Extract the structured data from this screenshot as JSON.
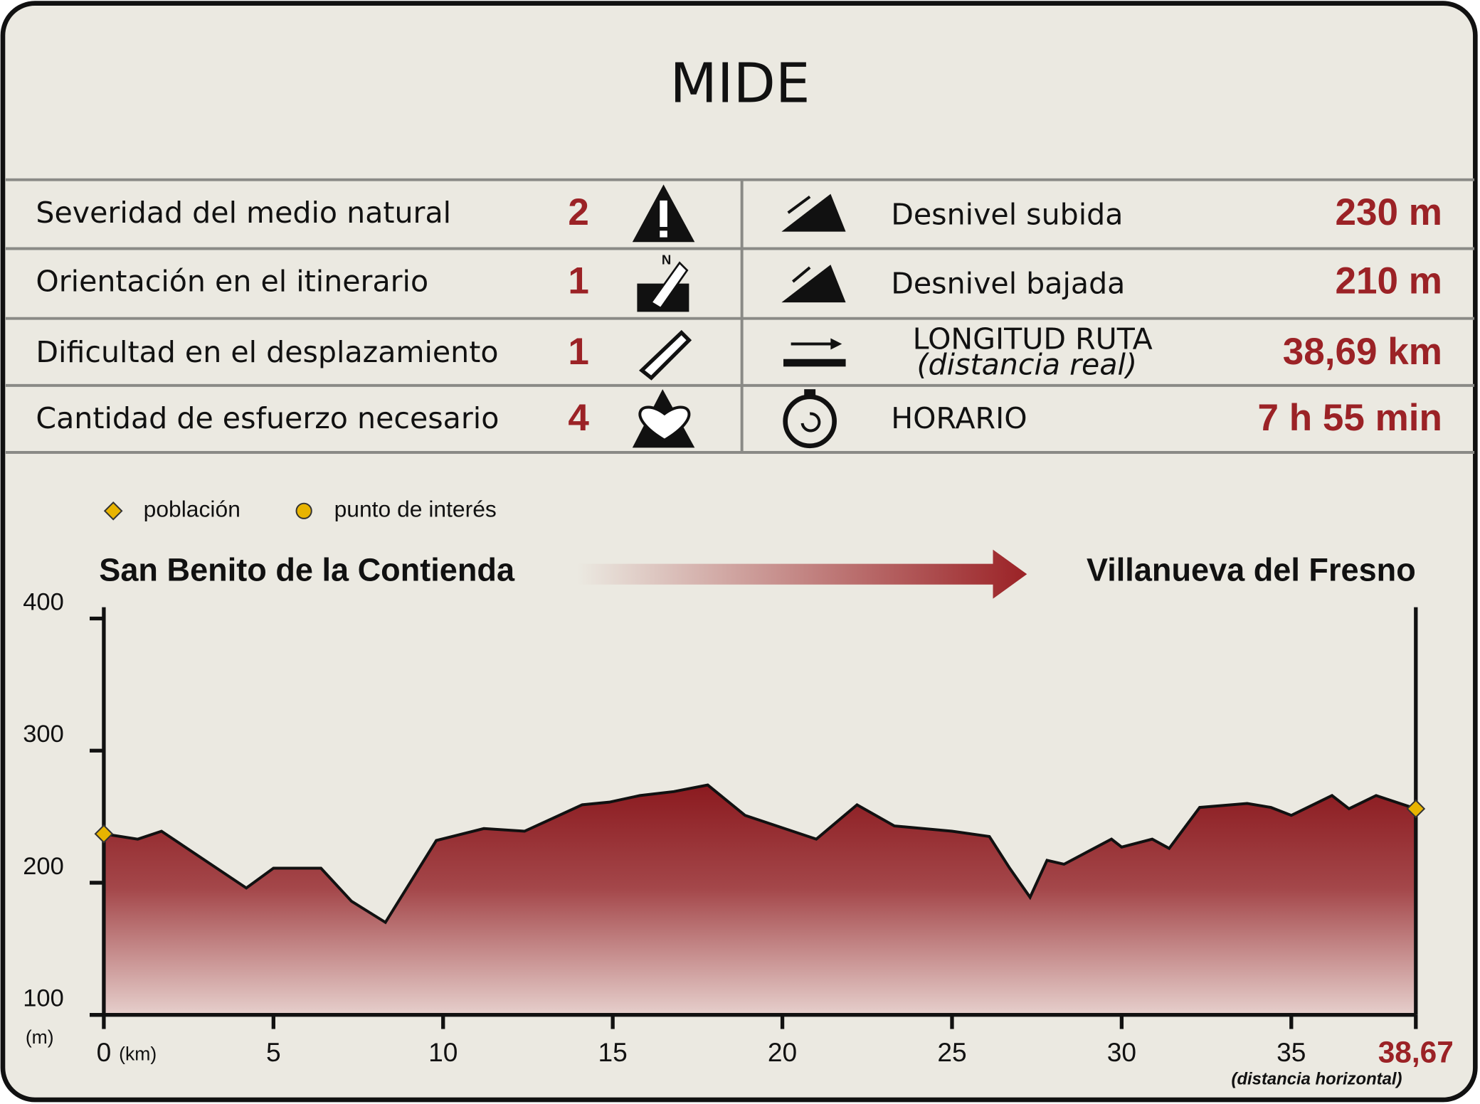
{
  "header": {
    "title": "MIDE"
  },
  "table": {
    "rows": [
      {
        "label": "Severidad del medio natural",
        "value": 2,
        "right_label": "Desnivel subida",
        "right_value": "230 m"
      },
      {
        "label": "Orientación en el itinerario",
        "value": 1,
        "right_label": "Desnivel bajada",
        "right_value": "210 m"
      },
      {
        "label": "Dificultad en el desplazamiento",
        "value": 1,
        "right_label": "LONGITUD RUTA",
        "right_note": "(distancia real)",
        "right_value": "38,69 km"
      },
      {
        "label": "Cantidad de esfuerzo necesario",
        "value": 4,
        "right_label": "HORARIO",
        "right_value": "7 h 55 min"
      }
    ]
  },
  "chart_data": {
    "type": "area",
    "start": "San Benito de la Contienda",
    "end": "Villanueva del Fresno",
    "legend": [
      {
        "name": "población",
        "shape": "diamond",
        "color": "#e8b400"
      },
      {
        "name": "punto de interés",
        "shape": "circle",
        "color": "#e8b400"
      }
    ],
    "y_unit": "(m)",
    "x_unit": "(km)",
    "x_note": "(distancia horizontal)",
    "color": "#8b1a1f",
    "x": [
      0,
      1.0,
      1.7,
      4.2,
      5.0,
      6.4,
      7.3,
      8.3,
      9.8,
      11.2,
      12.4,
      14.1,
      14.9,
      15.8,
      16.8,
      17.8,
      18.9,
      21.0,
      22.2,
      23.3,
      25.0,
      26.1,
      26.7,
      27.3,
      27.8,
      28.3,
      29.7,
      30.0,
      30.9,
      31.4,
      32.3,
      33.7,
      34.4,
      35.0,
      36.2,
      36.7,
      37.5,
      38.67
    ],
    "values": [
      237,
      233,
      239,
      196,
      211,
      211,
      186,
      170,
      232,
      241,
      239,
      259,
      261,
      266,
      269,
      274,
      251,
      233,
      259,
      243,
      239,
      235,
      211,
      189,
      217,
      214,
      233,
      227,
      233,
      226,
      257,
      260,
      257,
      251,
      266,
      256,
      266,
      256
    ],
    "points": {
      "x": [
        0,
        38.67
      ],
      "values": [
        237,
        256
      ]
    },
    "xlim": [
      0,
      38.67
    ],
    "xticks": [
      0,
      5,
      10,
      15,
      20,
      25,
      30,
      35,
      {
        "value": 38.67,
        "label": "38,67"
      }
    ],
    "ylim": [
      100,
      400
    ],
    "yticks": [
      100,
      200,
      300,
      400
    ]
  }
}
